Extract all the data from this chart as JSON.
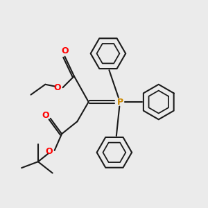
{
  "bg_color": "#ebebeb",
  "bond_color": "#1a1a1a",
  "oxygen_color": "#ff0000",
  "phosphorus_color": "#cc8800",
  "line_width": 1.5,
  "fig_size": [
    3.0,
    3.0
  ],
  "dpi": 100,
  "xlim": [
    0,
    10
  ],
  "ylim": [
    0,
    10
  ]
}
